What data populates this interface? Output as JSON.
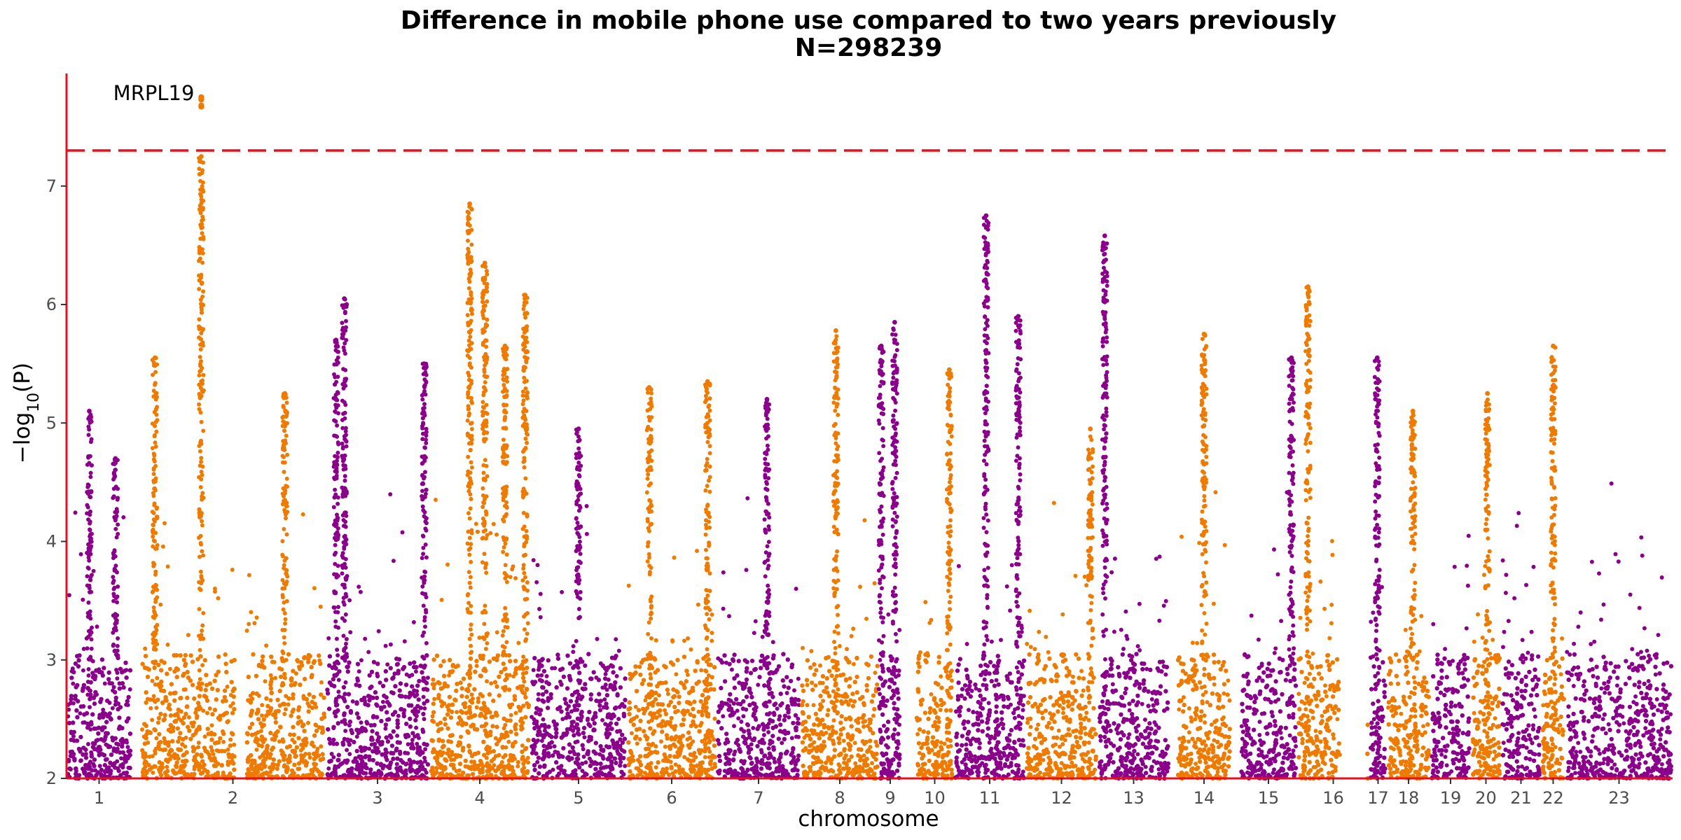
{
  "chart_data": {
    "type": "scatter",
    "title": "Difference in mobile phone use compared to two years previously",
    "subtitle": "N=298239",
    "xlabel": "chromosome",
    "ylabel": "−log10(P)",
    "ylim": [
      2,
      7.95
    ],
    "yticks": [
      2,
      3,
      4,
      5,
      6,
      7
    ],
    "significance_threshold": 7.3,
    "colors": {
      "odd": "#8b008b",
      "even": "#ef7a00",
      "axis": "#e8101d",
      "threshold": "#e8101d"
    },
    "chromosomes": [
      {
        "label": "1",
        "color": "odd"
      },
      {
        "label": "2",
        "color": "even"
      },
      {
        "label": "3",
        "color": "odd"
      },
      {
        "label": "4",
        "color": "even"
      },
      {
        "label": "5",
        "color": "odd"
      },
      {
        "label": "6",
        "color": "even"
      },
      {
        "label": "7",
        "color": "odd"
      },
      {
        "label": "8",
        "color": "even"
      },
      {
        "label": "9",
        "color": "odd"
      },
      {
        "label": "10",
        "color": "even"
      },
      {
        "label": "11",
        "color": "odd"
      },
      {
        "label": "12",
        "color": "even"
      },
      {
        "label": "13",
        "color": "odd"
      },
      {
        "label": "14",
        "color": "even"
      },
      {
        "label": "15",
        "color": "odd"
      },
      {
        "label": "16",
        "color": "even"
      },
      {
        "label": "17",
        "color": "odd"
      },
      {
        "label": "18",
        "color": "even"
      },
      {
        "label": "19",
        "color": "odd"
      },
      {
        "label": "20",
        "color": "even"
      },
      {
        "label": "21",
        "color": "odd"
      },
      {
        "label": "22",
        "color": "even"
      },
      {
        "label": "23",
        "color": "odd"
      }
    ],
    "peaks": [
      {
        "chrom": "1",
        "pos": 0.35,
        "max": 5.1
      },
      {
        "chrom": "1",
        "pos": 0.75,
        "max": 4.7
      },
      {
        "chrom": "2",
        "pos": 0.08,
        "max": 5.55
      },
      {
        "chrom": "2",
        "pos": 0.33,
        "max": 7.25
      },
      {
        "chrom": "2",
        "pos": 0.78,
        "max": 5.25
      },
      {
        "chrom": "3",
        "pos": 0.1,
        "max": 5.7
      },
      {
        "chrom": "3",
        "pos": 0.18,
        "max": 6.05
      },
      {
        "chrom": "3",
        "pos": 0.95,
        "max": 5.5
      },
      {
        "chrom": "4",
        "pos": 0.4,
        "max": 6.85
      },
      {
        "chrom": "4",
        "pos": 0.55,
        "max": 6.35
      },
      {
        "chrom": "4",
        "pos": 0.75,
        "max": 5.65
      },
      {
        "chrom": "4",
        "pos": 0.95,
        "max": 6.08
      },
      {
        "chrom": "5",
        "pos": 0.5,
        "max": 4.95
      },
      {
        "chrom": "6",
        "pos": 0.25,
        "max": 5.3
      },
      {
        "chrom": "6",
        "pos": 0.9,
        "max": 5.35
      },
      {
        "chrom": "7",
        "pos": 0.6,
        "max": 5.2
      },
      {
        "chrom": "8",
        "pos": 0.45,
        "max": 5.78
      },
      {
        "chrom": "9",
        "pos": 0.1,
        "max": 5.65
      },
      {
        "chrom": "9",
        "pos": 0.7,
        "max": 5.85
      },
      {
        "chrom": "10",
        "pos": 0.88,
        "max": 5.45
      },
      {
        "chrom": "11",
        "pos": 0.45,
        "max": 6.75
      },
      {
        "chrom": "11",
        "pos": 0.9,
        "max": 5.9
      },
      {
        "chrom": "12",
        "pos": 0.9,
        "max": 4.95
      },
      {
        "chrom": "13",
        "pos": 0.1,
        "max": 6.58
      },
      {
        "chrom": "14",
        "pos": 0.5,
        "max": 5.75
      },
      {
        "chrom": "15",
        "pos": 0.9,
        "max": 5.55
      },
      {
        "chrom": "16",
        "pos": 0.15,
        "max": 6.15
      },
      {
        "chrom": "17",
        "pos": 0.45,
        "max": 5.55
      },
      {
        "chrom": "18",
        "pos": 0.6,
        "max": 5.1
      },
      {
        "chrom": "20",
        "pos": 0.55,
        "max": 5.25
      },
      {
        "chrom": "22",
        "pos": 0.5,
        "max": 5.65
      }
    ],
    "hits": [
      {
        "chrom": "2",
        "pos": 0.33,
        "values": [
          7.75,
          7.73,
          7.68,
          7.67
        ],
        "label": "MRPL19"
      }
    ]
  }
}
